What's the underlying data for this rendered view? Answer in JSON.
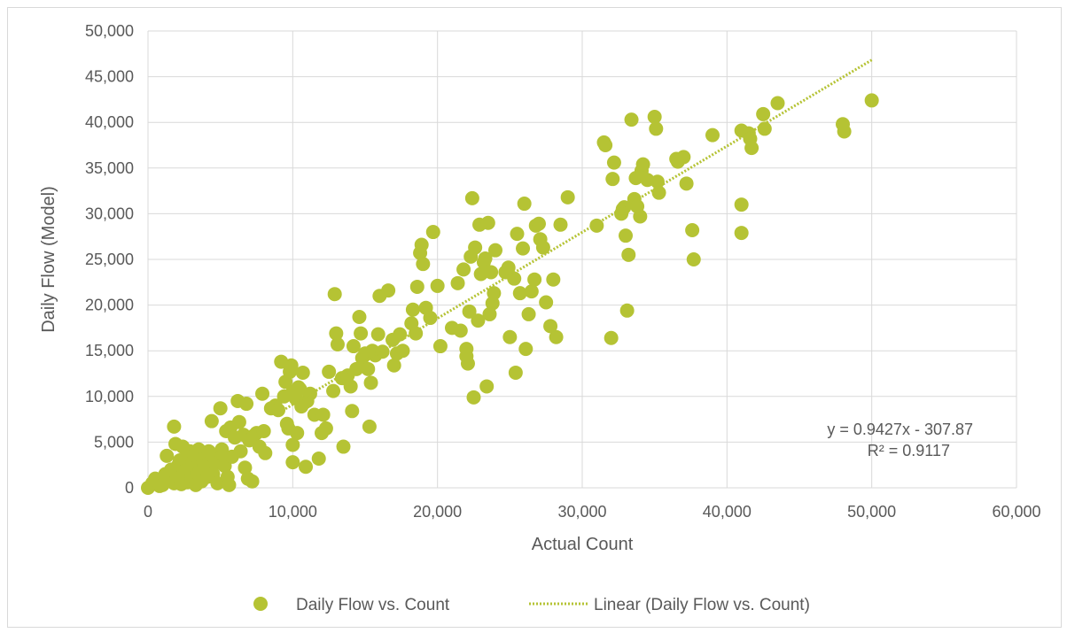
{
  "chart_data": {
    "type": "scatter",
    "xlabel": "Actual Count",
    "ylabel": "Daily Flow (Model)",
    "xlim": [
      0,
      60000
    ],
    "ylim": [
      0,
      50000
    ],
    "x_ticks": [
      0,
      10000,
      20000,
      30000,
      40000,
      50000,
      60000
    ],
    "y_ticks": [
      0,
      5000,
      10000,
      15000,
      20000,
      25000,
      30000,
      35000,
      40000,
      45000,
      50000
    ],
    "x_tick_labels": [
      "0",
      "10,000",
      "20,000",
      "30,000",
      "40,000",
      "50,000",
      "60,000"
    ],
    "y_tick_labels": [
      "0",
      "5,000",
      "10,000",
      "15,000",
      "20,000",
      "25,000",
      "30,000",
      "35,000",
      "40,000",
      "45,000",
      "50,000"
    ],
    "grid": true,
    "legend_position": "bottom",
    "colors": {
      "points": "#b5c334",
      "trendline": "#b5c334",
      "grid": "#d9d9d9",
      "text": "#595959"
    },
    "series": [
      {
        "name": "Daily Flow vs. Count",
        "marker": "circle",
        "points": [
          [
            0,
            0
          ],
          [
            300,
            500
          ],
          [
            500,
            1000
          ],
          [
            800,
            200
          ],
          [
            1000,
            300
          ],
          [
            1200,
            1500
          ],
          [
            1300,
            3500
          ],
          [
            1500,
            800
          ],
          [
            1600,
            2000
          ],
          [
            1800,
            6700
          ],
          [
            1800,
            500
          ],
          [
            1900,
            4800
          ],
          [
            2000,
            1200
          ],
          [
            2100,
            2500
          ],
          [
            2200,
            3000
          ],
          [
            2300,
            400
          ],
          [
            2400,
            4500
          ],
          [
            2500,
            1800
          ],
          [
            2600,
            3200
          ],
          [
            2700,
            600
          ],
          [
            2800,
            2200
          ],
          [
            2900,
            4000
          ],
          [
            3000,
            1000
          ],
          [
            3100,
            2800
          ],
          [
            3200,
            3600
          ],
          [
            3300,
            300
          ],
          [
            3400,
            1600
          ],
          [
            3500,
            4200
          ],
          [
            3600,
            2000
          ],
          [
            3700,
            700
          ],
          [
            3800,
            3000
          ],
          [
            3900,
            2500
          ],
          [
            4000,
            3800
          ],
          [
            4100,
            1200
          ],
          [
            4200,
            4000
          ],
          [
            4300,
            2200
          ],
          [
            4400,
            7300
          ],
          [
            4500,
            1500
          ],
          [
            4600,
            3300
          ],
          [
            4700,
            2700
          ],
          [
            4800,
            500
          ],
          [
            5000,
            8700
          ],
          [
            5100,
            4200
          ],
          [
            5200,
            3600
          ],
          [
            5300,
            2400
          ],
          [
            5400,
            6200
          ],
          [
            5500,
            1200
          ],
          [
            5600,
            300
          ],
          [
            5700,
            6600
          ],
          [
            5800,
            3400
          ],
          [
            6000,
            5500
          ],
          [
            6200,
            9500
          ],
          [
            6300,
            7200
          ],
          [
            6400,
            4000
          ],
          [
            6600,
            5800
          ],
          [
            6700,
            2200
          ],
          [
            6800,
            9200
          ],
          [
            6900,
            1000
          ],
          [
            7000,
            5200
          ],
          [
            7200,
            700
          ],
          [
            7300,
            5700
          ],
          [
            7500,
            6000
          ],
          [
            7700,
            4500
          ],
          [
            7900,
            10300
          ],
          [
            8000,
            6200
          ],
          [
            8100,
            3800
          ],
          [
            8500,
            8700
          ],
          [
            8800,
            9000
          ],
          [
            9000,
            8500
          ],
          [
            9200,
            13800
          ],
          [
            9400,
            10000
          ],
          [
            9500,
            11600
          ],
          [
            9600,
            7000
          ],
          [
            9700,
            6500
          ],
          [
            9800,
            12700
          ],
          [
            9900,
            13400
          ],
          [
            10000,
            4700
          ],
          [
            10000,
            2800
          ],
          [
            10000,
            10500
          ],
          [
            10200,
            9800
          ],
          [
            10300,
            6000
          ],
          [
            10400,
            11000
          ],
          [
            10500,
            10800
          ],
          [
            10600,
            8900
          ],
          [
            10700,
            12600
          ],
          [
            10800,
            9300
          ],
          [
            10900,
            2300
          ],
          [
            11000,
            9500
          ],
          [
            11200,
            10300
          ],
          [
            11500,
            8000
          ],
          [
            11800,
            3200
          ],
          [
            12000,
            6000
          ],
          [
            12100,
            8000
          ],
          [
            12300,
            6500
          ],
          [
            12500,
            12700
          ],
          [
            12800,
            10600
          ],
          [
            12900,
            21200
          ],
          [
            13000,
            16900
          ],
          [
            13100,
            15700
          ],
          [
            13400,
            12000
          ],
          [
            13500,
            4500
          ],
          [
            13800,
            12300
          ],
          [
            14000,
            11100
          ],
          [
            14100,
            8400
          ],
          [
            14200,
            15500
          ],
          [
            14400,
            13000
          ],
          [
            14600,
            18700
          ],
          [
            14700,
            16900
          ],
          [
            14800,
            14200
          ],
          [
            15000,
            14700
          ],
          [
            15200,
            13000
          ],
          [
            15300,
            6700
          ],
          [
            15400,
            11500
          ],
          [
            15500,
            15000
          ],
          [
            15700,
            14500
          ],
          [
            15900,
            16800
          ],
          [
            16000,
            21000
          ],
          [
            16200,
            14900
          ],
          [
            16600,
            21600
          ],
          [
            16900,
            16200
          ],
          [
            17000,
            13400
          ],
          [
            17200,
            14700
          ],
          [
            17400,
            16800
          ],
          [
            17600,
            15000
          ],
          [
            18200,
            18000
          ],
          [
            18300,
            19500
          ],
          [
            18500,
            16900
          ],
          [
            18600,
            22000
          ],
          [
            18800,
            25700
          ],
          [
            18900,
            26600
          ],
          [
            19000,
            24500
          ],
          [
            19200,
            19700
          ],
          [
            19500,
            18600
          ],
          [
            19700,
            28000
          ],
          [
            20000,
            22100
          ],
          [
            20200,
            15500
          ],
          [
            21000,
            17500
          ],
          [
            21400,
            22400
          ],
          [
            21600,
            17200
          ],
          [
            21800,
            23900
          ],
          [
            22000,
            15200
          ],
          [
            22000,
            14400
          ],
          [
            22100,
            13600
          ],
          [
            22200,
            19300
          ],
          [
            22300,
            25300
          ],
          [
            22400,
            31700
          ],
          [
            22500,
            9900
          ],
          [
            22600,
            26300
          ],
          [
            22800,
            18300
          ],
          [
            22900,
            28800
          ],
          [
            23000,
            23400
          ],
          [
            23200,
            24700
          ],
          [
            23300,
            25100
          ],
          [
            23400,
            11100
          ],
          [
            23500,
            29000
          ],
          [
            23600,
            19000
          ],
          [
            23700,
            23600
          ],
          [
            23800,
            20200
          ],
          [
            23900,
            21300
          ],
          [
            24000,
            26000
          ],
          [
            24700,
            23600
          ],
          [
            24900,
            24100
          ],
          [
            25000,
            16500
          ],
          [
            25300,
            22900
          ],
          [
            25400,
            12600
          ],
          [
            25500,
            27800
          ],
          [
            25700,
            21300
          ],
          [
            25900,
            26200
          ],
          [
            26000,
            31100
          ],
          [
            26100,
            15200
          ],
          [
            26300,
            19000
          ],
          [
            26500,
            21500
          ],
          [
            26700,
            22800
          ],
          [
            26800,
            28700
          ],
          [
            27000,
            28900
          ],
          [
            27100,
            27200
          ],
          [
            27300,
            26300
          ],
          [
            27500,
            20300
          ],
          [
            27800,
            17700
          ],
          [
            28000,
            22800
          ],
          [
            28200,
            16500
          ],
          [
            28500,
            28800
          ],
          [
            29000,
            31800
          ],
          [
            31000,
            28700
          ],
          [
            31500,
            37800
          ],
          [
            31600,
            37500
          ],
          [
            32000,
            16400
          ],
          [
            32100,
            33800
          ],
          [
            32200,
            35600
          ],
          [
            32700,
            30000
          ],
          [
            32800,
            30500
          ],
          [
            32900,
            30700
          ],
          [
            33000,
            27600
          ],
          [
            33100,
            19400
          ],
          [
            33200,
            25500
          ],
          [
            33400,
            40300
          ],
          [
            33600,
            31600
          ],
          [
            33700,
            33900
          ],
          [
            33800,
            30800
          ],
          [
            34000,
            29700
          ],
          [
            34100,
            34700
          ],
          [
            34200,
            35400
          ],
          [
            34500,
            33700
          ],
          [
            35000,
            40600
          ],
          [
            35100,
            39300
          ],
          [
            35200,
            33500
          ],
          [
            35300,
            32300
          ],
          [
            36500,
            36000
          ],
          [
            36600,
            35700
          ],
          [
            37000,
            36200
          ],
          [
            37200,
            33300
          ],
          [
            37600,
            28200
          ],
          [
            37700,
            25000
          ],
          [
            39000,
            38600
          ],
          [
            41000,
            39100
          ],
          [
            41000,
            31000
          ],
          [
            41000,
            27900
          ],
          [
            41500,
            38800
          ],
          [
            41600,
            38200
          ],
          [
            41700,
            37200
          ],
          [
            42500,
            40900
          ],
          [
            42600,
            39300
          ],
          [
            43500,
            42100
          ],
          [
            48000,
            39800
          ],
          [
            48100,
            39000
          ],
          [
            50000,
            42400
          ]
        ]
      }
    ],
    "trendline": {
      "name": "Linear (Daily Flow vs. Count)",
      "style": "dotted",
      "slope": 0.9427,
      "intercept": -307.87,
      "x_range": [
        9500,
        50000
      ],
      "equation_label": "y = 0.9427x - 307.87",
      "r2_label": "R² = 0.9117"
    }
  }
}
